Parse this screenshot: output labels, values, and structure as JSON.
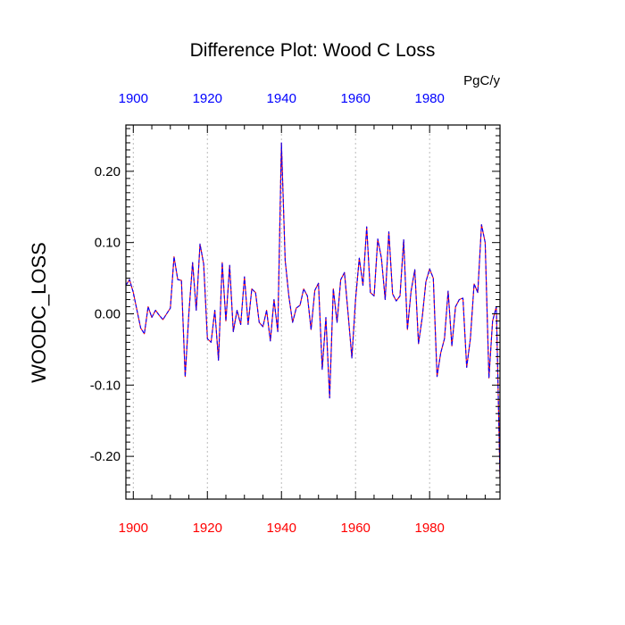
{
  "chart_data": {
    "type": "line",
    "title": "Difference Plot: Wood C Loss",
    "units": "PgC/y",
    "ylabel": "WOODC_LOSS",
    "xlabel": "",
    "xlim": [
      1898,
      1999
    ],
    "ylim": [
      -0.26,
      0.265
    ],
    "x_ticks": [
      1900,
      1920,
      1940,
      1960,
      1980
    ],
    "x_tick_labels": [
      "1900",
      "1920",
      "1940",
      "1960",
      "1980"
    ],
    "y_ticks": [
      -0.2,
      -0.1,
      0.0,
      0.1,
      0.2
    ],
    "y_tick_labels": [
      "-0.20",
      "-0.10",
      "0.00",
      "0.10",
      "0.20"
    ],
    "grid": "vertical-dotted",
    "colors": {
      "line_a": "#ff0000",
      "line_b": "#0000ff",
      "bottom_ticks": "#ff0000",
      "top_ticks": "#0000ff",
      "grid": "#bbbbbb"
    },
    "x": [
      1898,
      1899,
      1900,
      1901,
      1902,
      1903,
      1904,
      1905,
      1906,
      1907,
      1908,
      1909,
      1910,
      1911,
      1912,
      1913,
      1914,
      1915,
      1916,
      1917,
      1918,
      1919,
      1920,
      1921,
      1922,
      1923,
      1924,
      1925,
      1926,
      1927,
      1928,
      1929,
      1930,
      1931,
      1932,
      1933,
      1934,
      1935,
      1936,
      1937,
      1938,
      1939,
      1940,
      1941,
      1942,
      1943,
      1944,
      1945,
      1946,
      1947,
      1948,
      1949,
      1950,
      1951,
      1952,
      1953,
      1954,
      1955,
      1956,
      1957,
      1958,
      1959,
      1960,
      1961,
      1962,
      1963,
      1964,
      1965,
      1966,
      1967,
      1968,
      1969,
      1970,
      1971,
      1972,
      1973,
      1974,
      1975,
      1976,
      1977,
      1978,
      1979,
      1980,
      1981,
      1982,
      1983,
      1984,
      1985,
      1986,
      1987,
      1988,
      1989,
      1990,
      1991,
      1992,
      1993,
      1994,
      1995,
      1996,
      1997,
      1998,
      1999
    ],
    "series": [
      {
        "values": [
          0.04,
          0.048,
          0.03,
          0.005,
          -0.02,
          -0.028,
          0.01,
          -0.005,
          0.005,
          -0.002,
          -0.008,
          0.0,
          0.008,
          0.08,
          0.048,
          0.047,
          -0.088,
          0.0,
          0.072,
          0.005,
          0.098,
          0.07,
          -0.035,
          -0.04,
          0.005,
          -0.065,
          0.072,
          -0.01,
          0.068,
          -0.025,
          0.005,
          -0.015,
          0.052,
          -0.015,
          0.035,
          0.03,
          -0.012,
          -0.018,
          0.005,
          -0.038,
          0.02,
          -0.025,
          0.24,
          0.075,
          0.025,
          -0.012,
          0.008,
          0.012,
          0.035,
          0.025,
          -0.022,
          0.033,
          0.043,
          -0.078,
          -0.005,
          -0.118,
          0.035,
          -0.012,
          0.048,
          0.058,
          0.0,
          -0.062,
          0.02,
          0.078,
          0.04,
          0.122,
          0.03,
          0.025,
          0.105,
          0.078,
          0.02,
          0.115,
          0.028,
          0.018,
          0.025,
          0.104,
          -0.022,
          0.032,
          0.062,
          -0.042,
          -0.005,
          0.045,
          0.063,
          0.05,
          -0.088,
          -0.055,
          -0.035,
          0.032,
          -0.045,
          0.01,
          0.02,
          0.022,
          -0.075,
          -0.035,
          0.042,
          0.03,
          0.125,
          0.1,
          -0.09,
          -0.01,
          0.01,
          -0.23
        ]
      }
    ]
  }
}
